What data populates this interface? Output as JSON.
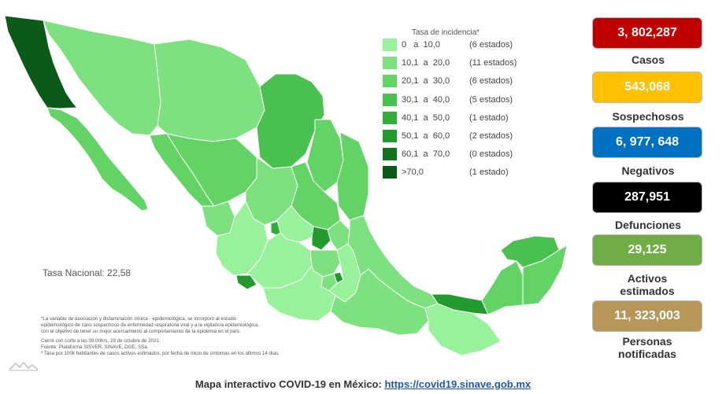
{
  "legend": {
    "title": "Tasa de incidencia*",
    "rows": [
      {
        "range": "0   a  10,0",
        "count": "(6 estados)",
        "color": "#98f29b"
      },
      {
        "range": "10,1  a  20,0",
        "count": "(11 estados)",
        "color": "#7ee17f"
      },
      {
        "range": "20,1  a  30,0",
        "count": "(6 estados)",
        "color": "#63d366"
      },
      {
        "range": "30,1  a  40,0",
        "count": "(5 estados)",
        "color": "#49c04f"
      },
      {
        "range": "40,1  a  50,0",
        "count": "(1 estado)",
        "color": "#34ad3c"
      },
      {
        "range": "50,1  a  60,0",
        "count": "(2 estados)",
        "color": "#229a2d"
      },
      {
        "range": "60,1  a  70,0",
        "count": "(0 estados)",
        "color": "#13721f"
      },
      {
        "range": ">70,0",
        "count": "(1 estado)",
        "color": "#0c5a19"
      }
    ]
  },
  "tasa_nacional": "Tasa Nacional: 22,58",
  "notes": {
    "paragraph": [
      "*La variable de asociación y dictaminación clínica - epidemiológica, se incorporó al estudio",
      "epidemiológico de caso sospechoso de enfermedad respiratoria viral y a la vigilancia epidemiológica,",
      "con el objetivo de tener un mejor acercamiento al comportamiento de la epidemia en el país."
    ],
    "cutoff": "Cierre con corte a las 09:00hrs, 29 de octubre de 2021.",
    "source": "Fuente: Plataforma SISVER, SINAVE, DGE, SSa.",
    "rate_note": "* Tasa por 100k habitantes de casos activos estimados, por fecha de inicio de síntomas en los últimos 14 días."
  },
  "footer": {
    "label": "Mapa interactivo COVID-19 en México: ",
    "link": "https://covid19.sinave.gob.mx"
  },
  "stats": [
    {
      "value": "3, 802,287",
      "label": "Casos",
      "color": "#c00000"
    },
    {
      "value": "543,068",
      "label": "Sospechosos",
      "color": "#ffc000"
    },
    {
      "value": "6, 977, 648",
      "label": "Negativos",
      "color": "#0070c0"
    },
    {
      "value": "287,951",
      "label": "Defunciones",
      "color": "#000000"
    },
    {
      "value": "29,125",
      "label": "Activos estimados",
      "color": "#70ad47"
    },
    {
      "value": "11, 323,003",
      "label": "Personas notificadas",
      "color": "#b8965a"
    }
  ]
}
